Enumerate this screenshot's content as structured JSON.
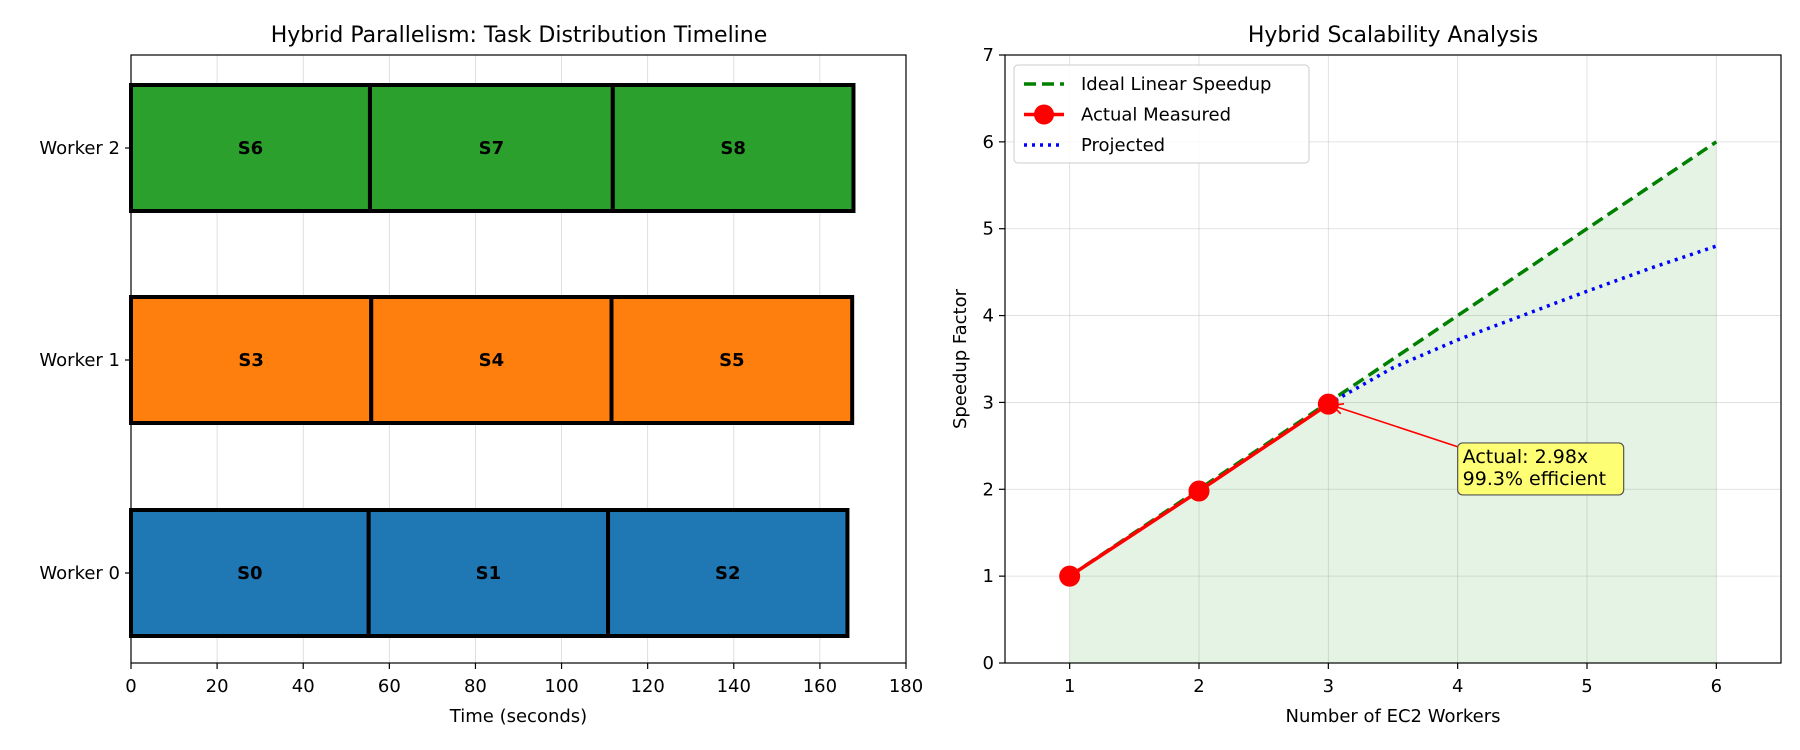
{
  "chart_data": [
    {
      "type": "bar",
      "orientation": "horizontal",
      "title": "Hybrid Parallelism: Task Distribution Timeline",
      "xlabel": "Time (seconds)",
      "ylabel": "",
      "xlim": [
        0,
        180
      ],
      "xticks": [
        "0",
        "20",
        "40",
        "60",
        "80",
        "100",
        "120",
        "140",
        "160",
        "180"
      ],
      "grid": "vertical",
      "workers": [
        {
          "name": "Worker 0",
          "color": "#1f77b4",
          "tasks": [
            {
              "label": "S0",
              "start": 0,
              "end": 55.2
            },
            {
              "label": "S1",
              "start": 55.2,
              "end": 110.8
            },
            {
              "label": "S2",
              "start": 110.8,
              "end": 166.4
            }
          ]
        },
        {
          "name": "Worker 1",
          "color": "#ff7f0e",
          "tasks": [
            {
              "label": "S3",
              "start": 0,
              "end": 55.8
            },
            {
              "label": "S4",
              "start": 55.8,
              "end": 111.6
            },
            {
              "label": "S5",
              "start": 111.6,
              "end": 167.5
            }
          ]
        },
        {
          "name": "Worker 2",
          "color": "#2ca02c",
          "tasks": [
            {
              "label": "S6",
              "start": 0,
              "end": 55.5
            },
            {
              "label": "S7",
              "start": 55.5,
              "end": 111.9
            },
            {
              "label": "S8",
              "start": 111.9,
              "end": 167.8
            }
          ]
        }
      ]
    },
    {
      "type": "line",
      "title": "Hybrid Scalability Analysis",
      "xlabel": "Number of EC2 Workers",
      "ylabel": "Speedup Factor",
      "xlim": [
        0.5,
        6.5
      ],
      "ylim": [
        0,
        7
      ],
      "xticks": [
        "1",
        "2",
        "3",
        "4",
        "5",
        "6"
      ],
      "yticks": [
        "0",
        "1",
        "2",
        "3",
        "4",
        "5",
        "6",
        "7"
      ],
      "grid": true,
      "legend_position": "top-left",
      "series": [
        {
          "name": "Ideal Linear Speedup",
          "style": "dashed",
          "color": "#008000",
          "x": [
            1,
            2,
            3,
            4,
            5,
            6
          ],
          "y": [
            1,
            2,
            3,
            4,
            5,
            6
          ]
        },
        {
          "name": "Actual Measured",
          "style": "solid-markers",
          "color": "#ff0000",
          "x": [
            1,
            2,
            3
          ],
          "y": [
            1.0,
            1.98,
            2.98
          ]
        },
        {
          "name": "Projected",
          "style": "dotted",
          "color": "#0000ff",
          "x": [
            3,
            3.5,
            4,
            4.5,
            5,
            5.5,
            6
          ],
          "y": [
            2.98,
            3.4,
            3.72,
            4.0,
            4.28,
            4.55,
            4.8
          ]
        }
      ],
      "shaded_area": {
        "series": "Ideal Linear Speedup",
        "color": "#2ca02c",
        "opacity": 0.13
      },
      "annotation": {
        "lines": [
          "Actual: 2.98x",
          "99.3% efficient"
        ],
        "point": {
          "x": 3,
          "y": 2.98
        },
        "text_at": {
          "x": 4.0,
          "y": 2.05
        },
        "box_color": "#ffff66"
      }
    }
  ]
}
